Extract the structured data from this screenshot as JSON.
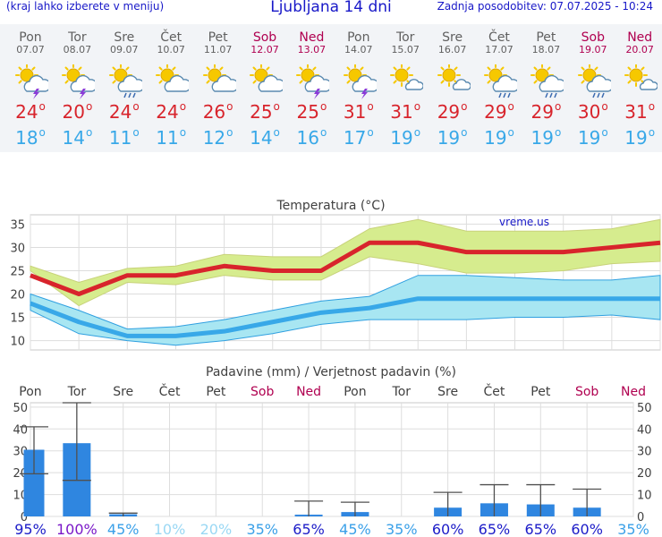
{
  "header": {
    "hint": "(kraj lahko izberete v meniju)",
    "title": "Ljubljana 14 dni",
    "updated": "Zadnja posodobitev: 07.07.2025 - 10:24"
  },
  "days": [
    {
      "name": "Pon",
      "date": "07.07",
      "weekend": false,
      "icon": "sun-cloud-thunder-icon",
      "tmax": "24",
      "tmin": "18"
    },
    {
      "name": "Tor",
      "date": "08.07",
      "weekend": false,
      "icon": "sun-cloud-thunder-icon",
      "tmax": "20",
      "tmin": "14"
    },
    {
      "name": "Sre",
      "date": "09.07",
      "weekend": false,
      "icon": "sun-cloud-rain-icon",
      "tmax": "24",
      "tmin": "11"
    },
    {
      "name": "Čet",
      "date": "10.07",
      "weekend": false,
      "icon": "sun-cloud-icon",
      "tmax": "24",
      "tmin": "11"
    },
    {
      "name": "Pet",
      "date": "11.07",
      "weekend": false,
      "icon": "sun-cloud-icon",
      "tmax": "26",
      "tmin": "12"
    },
    {
      "name": "Sob",
      "date": "12.07",
      "weekend": true,
      "icon": "sun-cloud-icon",
      "tmax": "25",
      "tmin": "14"
    },
    {
      "name": "Ned",
      "date": "13.07",
      "weekend": true,
      "icon": "sun-cloud-thunder-icon",
      "tmax": "25",
      "tmin": "16"
    },
    {
      "name": "Pon",
      "date": "14.07",
      "weekend": false,
      "icon": "sun-cloud-thunder-icon",
      "tmax": "31",
      "tmin": "17"
    },
    {
      "name": "Tor",
      "date": "15.07",
      "weekend": false,
      "icon": "sun-small-cloud-icon",
      "tmax": "31",
      "tmin": "19"
    },
    {
      "name": "Sre",
      "date": "16.07",
      "weekend": false,
      "icon": "sun-small-cloud-icon",
      "tmax": "29",
      "tmin": "19"
    },
    {
      "name": "Čet",
      "date": "17.07",
      "weekend": false,
      "icon": "sun-cloud-rain-icon",
      "tmax": "29",
      "tmin": "19"
    },
    {
      "name": "Pet",
      "date": "18.07",
      "weekend": false,
      "icon": "sun-cloud-rain-icon",
      "tmax": "29",
      "tmin": "19"
    },
    {
      "name": "Sob",
      "date": "19.07",
      "weekend": true,
      "icon": "sun-cloud-rain-icon",
      "tmax": "30",
      "tmin": "19"
    },
    {
      "name": "Ned",
      "date": "20.07",
      "weekend": true,
      "icon": "sun-small-cloud-icon",
      "tmax": "31",
      "tmin": "19"
    }
  ],
  "colors": {
    "weekday": "#606060",
    "weekend": "#b00050",
    "tmax": "#d8242c",
    "tmin": "#38a8e8",
    "precip_bar": "#2f86e0",
    "max_band": "#d6ec8e",
    "min_band": "#a8e6f2"
  },
  "chart_data": [
    {
      "type": "line",
      "title": "Temperatura (°C)",
      "watermark": "vreme.us",
      "ylim": [
        8,
        37
      ],
      "yticks": [
        10,
        15,
        20,
        25,
        30,
        35
      ],
      "categories": [
        "Pon",
        "Tor",
        "Sre",
        "Čet",
        "Pet",
        "Sob",
        "Ned",
        "Pon",
        "Tor",
        "Sre",
        "Čet",
        "Pet",
        "Sob",
        "Ned"
      ],
      "grid": true,
      "series": [
        {
          "name": "tmax",
          "values": [
            24,
            20,
            24,
            24,
            26,
            25,
            25,
            31,
            31,
            29,
            29,
            29,
            30,
            31
          ],
          "band_low": [
            25,
            17.5,
            22.5,
            22,
            24,
            23,
            23,
            28,
            26.5,
            24.5,
            24.5,
            25,
            26.5,
            27
          ],
          "band_high": [
            26,
            22.5,
            25.5,
            26,
            28.5,
            28,
            28,
            34,
            36,
            33.5,
            33.5,
            33.5,
            34,
            36
          ]
        },
        {
          "name": "tmin",
          "values": [
            18,
            14,
            11,
            11,
            12,
            14,
            16,
            17,
            19,
            19,
            19,
            19,
            19,
            19
          ],
          "band_low": [
            16.5,
            11.5,
            10,
            9,
            10,
            11.5,
            13.5,
            14.5,
            14.5,
            14.5,
            15,
            15,
            15.5,
            14.5
          ],
          "band_high": [
            20,
            16.5,
            12.5,
            13,
            14.5,
            16.5,
            18.5,
            19.5,
            24,
            24,
            23.5,
            23,
            23,
            24
          ]
        }
      ]
    },
    {
      "type": "bar",
      "title": "Padavine (mm) / Verjetnost padavin (%)",
      "ylim": [
        0,
        52
      ],
      "yticks": [
        0,
        10,
        20,
        30,
        40,
        50
      ],
      "categories": [
        "Pon",
        "Tor",
        "Sre",
        "Čet",
        "Pet",
        "Sob",
        "Ned",
        "Pon",
        "Tor",
        "Sre",
        "Čet",
        "Pet",
        "Sob",
        "Ned"
      ],
      "values": [
        30.5,
        33.5,
        1,
        0,
        0,
        0,
        0.8,
        2,
        0,
        4,
        6,
        5.5,
        4,
        0
      ],
      "err_low": [
        19.5,
        16.5,
        0,
        0,
        0,
        0,
        0,
        0,
        0,
        0,
        0,
        0,
        0,
        0
      ],
      "err_high": [
        41,
        52,
        1.5,
        0,
        0,
        0,
        7,
        6.5,
        0,
        11,
        14.5,
        14.5,
        12.5,
        0
      ],
      "probability": [
        "95%",
        "100%",
        "45%",
        "10%",
        "20%",
        "35%",
        "65%",
        "45%",
        "35%",
        "60%",
        "65%",
        "65%",
        "60%",
        "35%"
      ],
      "probability_colors": [
        "#1c1cc8",
        "#7a18c8",
        "#3aa0e8",
        "#9ad8f4",
        "#9ad8f4",
        "#3aa0e8",
        "#1c1cc8",
        "#3aa0e8",
        "#3aa0e8",
        "#1c1cc8",
        "#1c1cc8",
        "#1c1cc8",
        "#1c1cc8",
        "#3aa0e8"
      ]
    }
  ]
}
